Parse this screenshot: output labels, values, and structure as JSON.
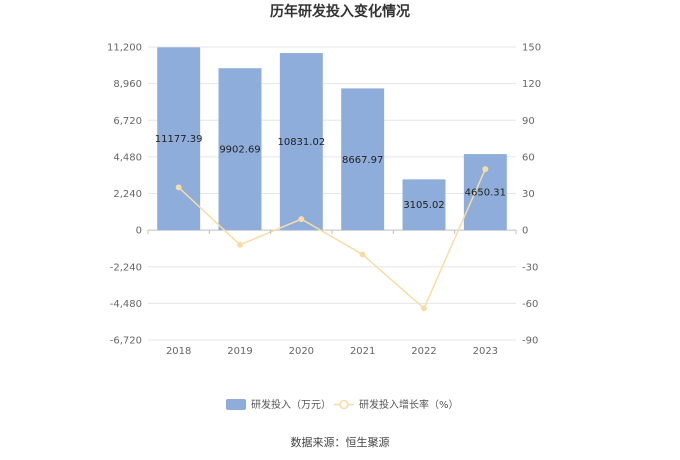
{
  "chart_data": {
    "type": "bar",
    "title": "历年研发投入变化情况",
    "categories": [
      "2018",
      "2019",
      "2020",
      "2021",
      "2022",
      "2023"
    ],
    "series": [
      {
        "name": "研发投入（万元）",
        "type": "bar",
        "axis": "left",
        "values": [
          11177.39,
          9902.69,
          10831.02,
          8667.97,
          3105.02,
          4650.31
        ],
        "labels": [
          "11177.39",
          "9902.69",
          "10831.02",
          "8667.97",
          "3105.02",
          "4650.31"
        ],
        "color": "#8eadda"
      },
      {
        "name": "研发投入增长率（%）",
        "type": "line",
        "axis": "right",
        "values": [
          35,
          -12,
          9,
          -20,
          -64,
          50
        ],
        "color": "#f7dca6"
      }
    ],
    "y_left": {
      "ticks": [
        11200,
        8960,
        6720,
        4480,
        2240,
        0,
        -2240,
        -4480,
        -6720
      ],
      "tick_labels": [
        "11,200",
        "8,960",
        "6,720",
        "4,480",
        "2,240",
        "0",
        "-2,240",
        "-4,480",
        "-6,720"
      ],
      "ylim": [
        -6720,
        11200
      ]
    },
    "y_right": {
      "ticks": [
        150,
        120,
        90,
        60,
        30,
        0,
        -30,
        -60,
        -90
      ],
      "tick_labels": [
        "150",
        "120",
        "90",
        "60",
        "30",
        "0",
        "-30",
        "-60",
        "-90"
      ],
      "ylim": [
        -90,
        150
      ]
    },
    "grid": true,
    "legend_position": "bottom",
    "source": "数据来源：恒生聚源"
  }
}
